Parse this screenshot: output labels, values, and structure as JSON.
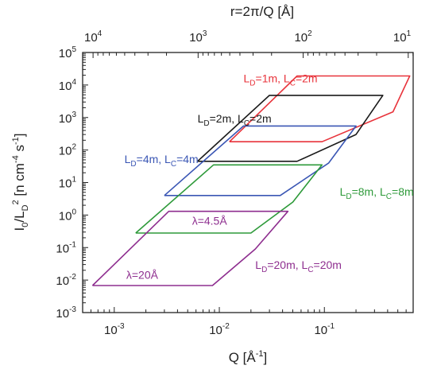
{
  "chart_data": {
    "type": "line",
    "x_scale": "log",
    "y_scale": "log",
    "xlabel": "Q [Å",
    "xlabel_sup": "-1",
    "xlabel_close": "]",
    "xlim": [
      0.0005,
      0.7
    ],
    "ylim": [
      0.001,
      100000
    ],
    "top_axis_label": "r=2π/Q [Å]",
    "top_ticks": [
      {
        "r": 10000,
        "base": "10",
        "exp": "4"
      },
      {
        "r": 1000,
        "base": "10",
        "exp": "3"
      },
      {
        "r": 100,
        "base": "10",
        "exp": "2"
      },
      {
        "r": 10,
        "base": "10",
        "exp": "1"
      }
    ],
    "x_ticks": [
      {
        "value": 0.001,
        "base": "10",
        "exp": "-3"
      },
      {
        "value": 0.01,
        "base": "10",
        "exp": "-2"
      },
      {
        "value": 0.1,
        "base": "10",
        "exp": "-1"
      }
    ],
    "y_ticks": [
      {
        "value": 100000,
        "base": "10",
        "exp": "5"
      },
      {
        "value": 10000,
        "base": "10",
        "exp": "4"
      },
      {
        "value": 1000,
        "base": "10",
        "exp": "3"
      },
      {
        "value": 100,
        "base": "10",
        "exp": "2"
      },
      {
        "value": 10,
        "base": "10",
        "exp": "1"
      },
      {
        "value": 1,
        "base": "10",
        "exp": "0"
      },
      {
        "value": 0.1,
        "base": "10",
        "exp": "-1"
      },
      {
        "value": 0.01,
        "base": "10",
        "exp": "-2"
      },
      {
        "value": 0.001,
        "base": "10",
        "exp": "-3"
      }
    ],
    "ylabel": {
      "i": "I",
      "i_sub": "0",
      "slash": "/L",
      "l_sub": "D",
      "l_sup": "2",
      "unit_open": " [n cm",
      "unit_sup1": "-4",
      "unit_mid": " s",
      "unit_sup2": "-1",
      "unit_close": "]"
    },
    "series": [
      {
        "color": "#e8333b",
        "label": {
          "p1": "L",
          "s1": "D",
          "p2": "=1m, L",
          "s2": "C",
          "p3": "=2m",
          "x": 0.017,
          "y": 12000
        },
        "points": [
          [
            0.0125,
            180
          ],
          [
            0.095,
            180
          ],
          [
            0.45,
            1500
          ],
          [
            0.65,
            19000
          ],
          [
            0.055,
            19000
          ],
          [
            0.0125,
            180
          ]
        ]
      },
      {
        "color": "#1a1a1a",
        "label": {
          "p1": "L",
          "s1": "D",
          "p2": "=2m, L",
          "s2": "C",
          "p3": "=2m",
          "x": 0.0062,
          "y": 700
        },
        "points": [
          [
            0.0062,
            45
          ],
          [
            0.055,
            45
          ],
          [
            0.2,
            300
          ],
          [
            0.36,
            4800
          ],
          [
            0.03,
            4800
          ],
          [
            0.0062,
            45
          ]
        ]
      },
      {
        "color": "#3a56b4",
        "label": {
          "p1": "L",
          "s1": "D",
          "p2": "=4m, L",
          "s2": "C",
          "p3": "=4m",
          "x": 0.00125,
          "y": 40
        },
        "points": [
          [
            0.003,
            4
          ],
          [
            0.038,
            4
          ],
          [
            0.11,
            40
          ],
          [
            0.2,
            550
          ],
          [
            0.017,
            550
          ],
          [
            0.003,
            4
          ]
        ]
      },
      {
        "color": "#2e9a3a",
        "label": {
          "p1": "L",
          "s1": "D",
          "p2": "=8m, L",
          "s2": "C",
          "p3": "=8m",
          "x": 0.14,
          "y": 4
        },
        "points": [
          [
            0.0016,
            0.28
          ],
          [
            0.02,
            0.28
          ],
          [
            0.05,
            2.5
          ],
          [
            0.095,
            35
          ],
          [
            0.0088,
            35
          ],
          [
            0.0016,
            0.28
          ]
        ]
      },
      {
        "color": "#8e2e8f",
        "label": {
          "p1": "L",
          "s1": "D",
          "p2": "=20m, L",
          "s2": "C",
          "p3": "=20m",
          "x": 0.022,
          "y": 0.022
        },
        "points": [
          [
            0.00062,
            0.0068
          ],
          [
            0.0086,
            0.0068
          ],
          [
            0.022,
            0.09
          ],
          [
            0.045,
            1.3
          ],
          [
            0.0033,
            1.3
          ],
          [
            0.00062,
            0.0068
          ]
        ]
      }
    ],
    "annotations": [
      {
        "text": "λ=4.5Å",
        "color": "#8e2e8f",
        "x": 0.0055,
        "y": 0.5
      },
      {
        "text": "λ=20Å",
        "color": "#8e2e8f",
        "x": 0.0013,
        "y": 0.011
      }
    ],
    "grid": false,
    "legend": "none"
  }
}
